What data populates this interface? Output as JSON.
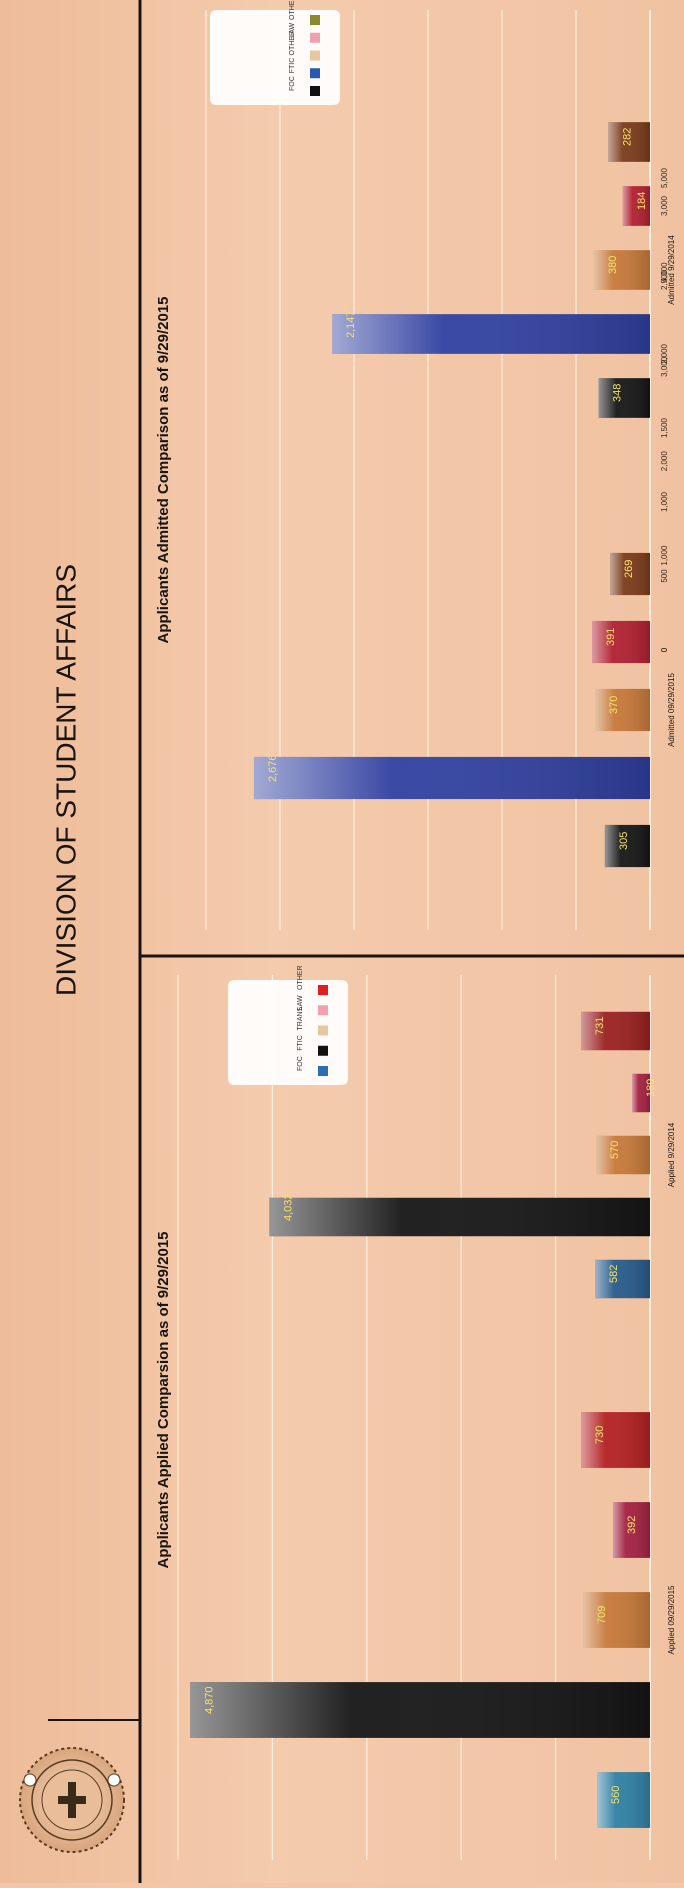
{
  "header": {
    "title": "DIVISION OF STUDENT AFFAIRS"
  },
  "colors": {
    "background": "#f2c6a6",
    "frame_line": "#1a1410",
    "grid": "#fff5e6",
    "value_label": "#f5e26a"
  },
  "chart_data": [
    {
      "type": "bar",
      "title": "Applicants Applied Comparsion as of 9/29/2015",
      "ylim": [
        0,
        5000
      ],
      "yticks": [
        "5,000",
        "4,000",
        "3,000",
        "2,000",
        "1,000",
        "0"
      ],
      "groups": [
        {
          "label": "Applied 09/29/2015",
          "bars": [
            {
              "category": "FOC",
              "value": 560,
              "label": "560",
              "color": "#2f7fa3"
            },
            {
              "category": "FTIC",
              "value": 4870,
              "label": "4,870",
              "color": "#161616"
            },
            {
              "category": "TRANS",
              "value": 709,
              "label": "709",
              "color": "#c67838"
            },
            {
              "category": "LAW",
              "value": 392,
              "label": "392",
              "color": "#a22040"
            },
            {
              "category": "OTHER",
              "value": 730,
              "label": "730",
              "color": "#b32020"
            }
          ]
        },
        {
          "label": "Applied 9/29/2014",
          "bars": [
            {
              "category": "FOC",
              "value": 582,
              "label": "582",
              "color": "#275a8a"
            },
            {
              "category": "FTIC",
              "value": 4032,
              "label": "4,032",
              "color": "#161616"
            },
            {
              "category": "TRANS",
              "value": 570,
              "label": "570",
              "color": "#c67838"
            },
            {
              "category": "LAW",
              "value": 189,
              "label": "189",
              "color": "#a22040"
            },
            {
              "category": "OTHER",
              "value": 731,
              "label": "731",
              "color": "#9a2020"
            }
          ]
        }
      ],
      "legend": [
        {
          "name": "FOC",
          "color": "#2a6fb0"
        },
        {
          "name": "FTIC",
          "color": "#111111"
        },
        {
          "name": "TRANS",
          "color": "#e6c8a0"
        },
        {
          "name": "LAW",
          "color": "#f0a0b0"
        },
        {
          "name": "OTHER",
          "color": "#e02020"
        }
      ],
      "grid": true,
      "legend_position": "top-right"
    },
    {
      "type": "bar",
      "title": "Applicants Admitted Comparison as of 9/29/2015",
      "ylim": [
        0,
        3000
      ],
      "yticks": [
        "3,000",
        "2,500",
        "2,000",
        "1,500",
        "1,000",
        "500",
        "0"
      ],
      "groups": [
        {
          "label": "Admitted 09/29/2015",
          "bars": [
            {
              "category": "FOC",
              "value": 305,
              "label": "305",
              "color": "#161616"
            },
            {
              "category": "FTIC",
              "value": 2676,
              "label": "2,676",
              "color": "#3040a0"
            },
            {
              "category": "TRANS",
              "value": 370,
              "label": "370",
              "color": "#c67838"
            },
            {
              "category": "LAW",
              "value": 391,
              "label": "391",
              "color": "#b02030"
            },
            {
              "category": "OTHER",
              "value": 269,
              "label": "269",
              "color": "#7a3a1a"
            }
          ]
        },
        {
          "label": "Admitted 9/29/2014",
          "bars": [
            {
              "category": "FOC",
              "value": 348,
              "label": "348",
              "color": "#161616"
            },
            {
              "category": "FTIC",
              "value": 2147,
              "label": "2,147",
              "color": "#3040a0"
            },
            {
              "category": "TRANS",
              "value": 380,
              "label": "380",
              "color": "#c67838"
            },
            {
              "category": "LAW",
              "value": 184,
              "label": "184",
              "color": "#b02030"
            },
            {
              "category": "OTHER",
              "value": 282,
              "label": "282",
              "color": "#7a3a1a"
            }
          ]
        }
      ],
      "legend": [
        {
          "name": "FOC",
          "color": "#111111"
        },
        {
          "name": "FTIC",
          "color": "#2a5ab0"
        },
        {
          "name": "OTHER",
          "color": "#e6c8a0"
        },
        {
          "name": "LAW",
          "color": "#f0a0b0"
        },
        {
          "name": "OTHER TRP",
          "color": "#8a8a30"
        }
      ],
      "grid": true,
      "legend_position": "top-right"
    }
  ]
}
